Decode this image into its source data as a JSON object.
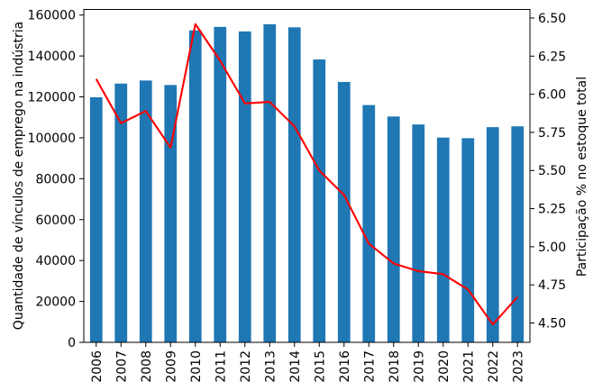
{
  "chart_data": {
    "type": "bar",
    "title": "",
    "categories": [
      "2006",
      "2007",
      "2008",
      "2009",
      "2010",
      "2011",
      "2012",
      "2013",
      "2014",
      "2015",
      "2016",
      "2017",
      "2018",
      "2019",
      "2020",
      "2021",
      "2022",
      "2023"
    ],
    "series": [
      {
        "name": "Quantidade de vínculos de emprego na indústria",
        "type": "bar",
        "axis": "left",
        "color": "#1f77b4",
        "values": [
          119800,
          126500,
          128000,
          125800,
          152500,
          154200,
          152000,
          155500,
          154000,
          138300,
          127300,
          116000,
          110400,
          106500,
          100100,
          99800,
          105200,
          105600
        ]
      },
      {
        "name": "Participação % no estoque total",
        "type": "line",
        "axis": "right",
        "color": "#ff0000",
        "values": [
          6.1,
          5.81,
          5.89,
          5.65,
          6.46,
          6.22,
          5.94,
          5.95,
          5.79,
          5.5,
          5.34,
          5.02,
          4.89,
          4.84,
          4.82,
          4.72,
          4.49,
          4.67
        ]
      }
    ],
    "left_axis": {
      "label": "Quantidade de vínculos de emprego na indústria",
      "ticks": [
        0,
        20000,
        40000,
        60000,
        80000,
        100000,
        120000,
        140000,
        160000
      ],
      "lim": [
        0,
        162730
      ]
    },
    "right_axis": {
      "label": "Participação % no estoque total",
      "ticks": [
        4.5,
        4.75,
        5.0,
        5.25,
        5.5,
        5.75,
        6.0,
        6.25,
        6.5
      ],
      "tick_decimals": 2,
      "lim": [
        4.373,
        6.556
      ]
    },
    "x_tick_rotation_deg": 90,
    "grid": false,
    "legend": null,
    "axis_color": "#000000",
    "background": "#ffffff"
  }
}
